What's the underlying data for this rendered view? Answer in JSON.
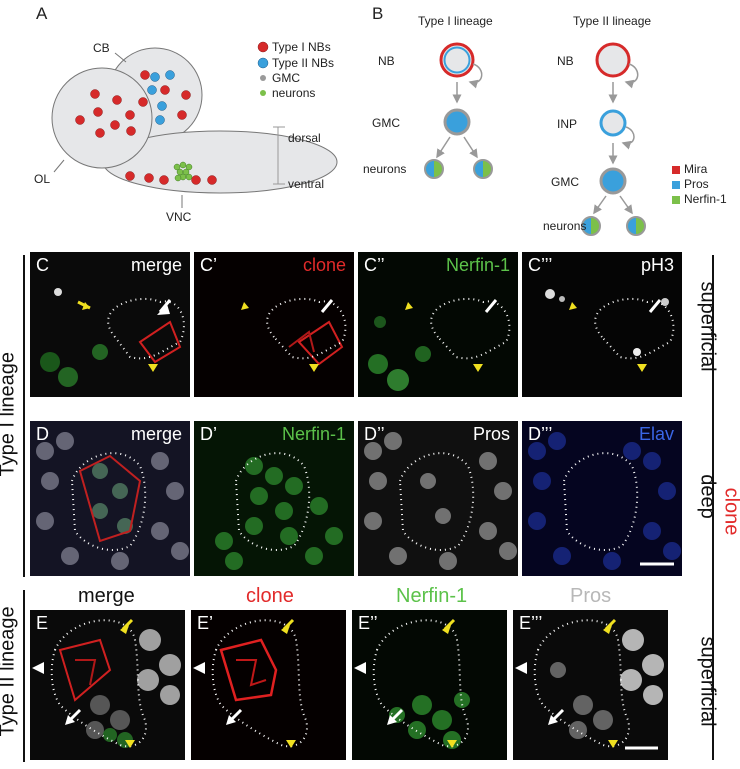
{
  "panel_a": {
    "letter": "A",
    "cb": "CB",
    "ol": "OL",
    "vnc": "VNC",
    "dorsal": "dorsal",
    "ventral": "ventral",
    "legend": [
      "Type I NBs",
      "Type II NBs",
      "GMC",
      "neurons"
    ],
    "colors": {
      "type1": "#d62a2a",
      "type2": "#3aa0dc",
      "gmc": "#9a9a9a",
      "neuron": "#7cc04a"
    }
  },
  "panel_b": {
    "letter": "B",
    "type1_title": "Type I lineage",
    "type2_title": "Type II lineage",
    "t1_nodes": [
      "NB",
      "GMC",
      "neurons"
    ],
    "t2_nodes": [
      "NB",
      "INP",
      "GMC",
      "neurons"
    ],
    "legend": [
      "Mira",
      "Pros",
      "Nerfin-1"
    ],
    "legend_colors": [
      "#d62a2a",
      "#3aa0dc",
      "#7cc04a"
    ]
  },
  "row_c": [
    {
      "tag": "C",
      "channel": "merge",
      "color": "#ffffff"
    },
    {
      "tag": "C’",
      "channel": "clone",
      "color": "#e22a2a"
    },
    {
      "tag": "C’’",
      "channel": "Nerfin-1",
      "color": "#5cc24a"
    },
    {
      "tag": "C’’’",
      "channel": "pH3",
      "color": "#ffffff"
    }
  ],
  "row_d": [
    {
      "tag": "D",
      "channel": "merge",
      "color": "#ffffff"
    },
    {
      "tag": "D’",
      "channel": "Nerfin-1",
      "color": "#5cc24a"
    },
    {
      "tag": "D’’",
      "channel": "Pros",
      "color": "#ffffff"
    },
    {
      "tag": "D’’’",
      "channel": "Elav",
      "color": "#3a66e6"
    }
  ],
  "row_e": [
    {
      "tag": "E",
      "channel": "merge",
      "color": "#111111"
    },
    {
      "tag": "E’",
      "channel": "clone",
      "color": "#e22a2a"
    },
    {
      "tag": "E’’",
      "channel": "Nerfin-1",
      "color": "#5cc24a"
    },
    {
      "tag": "E’’’",
      "channel": "Pros",
      "color": "#b8b8b8"
    }
  ],
  "side": {
    "superficial": "superficial",
    "deep": "deep",
    "clone": "clone",
    "type1": "Type I lineage",
    "type2": "Type II lineage"
  }
}
